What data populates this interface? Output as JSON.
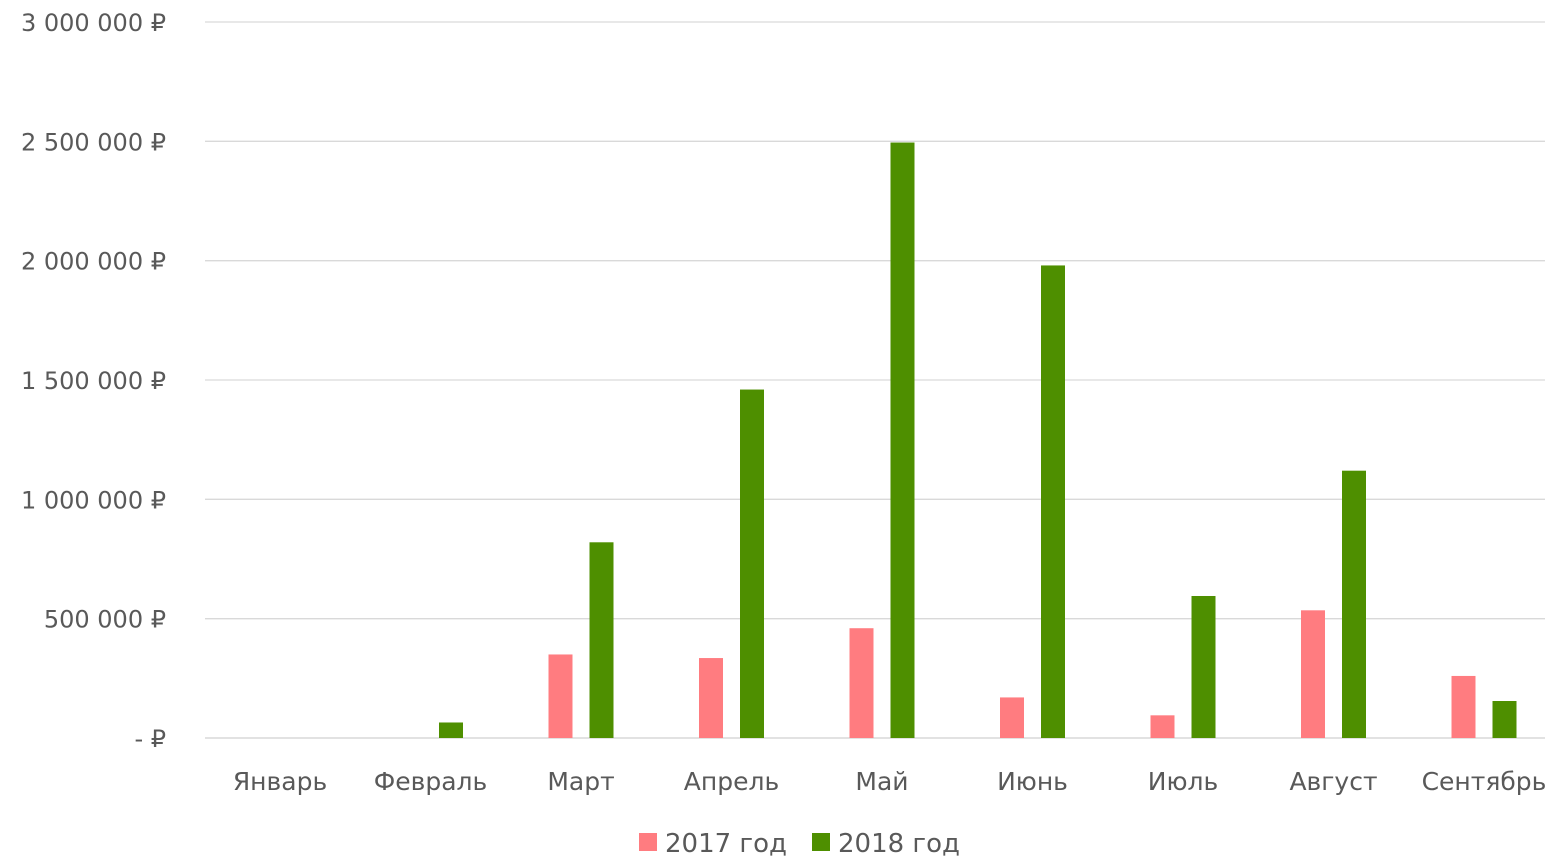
{
  "chart_data": {
    "type": "bar",
    "title": "",
    "xlabel": "",
    "ylabel": "",
    "categories": [
      "Январь",
      "Февраль",
      "Март",
      "Апрель",
      "Май",
      "Июнь",
      "Июль",
      "Август",
      "Сентябрь"
    ],
    "series": [
      {
        "name": "2017 год",
        "color": "#ff7c80",
        "values": [
          0,
          0,
          350000,
          335000,
          460000,
          170000,
          95000,
          535000,
          260000
        ]
      },
      {
        "name": "2018 год",
        "color": "#4e8f00",
        "values": [
          0,
          65000,
          820000,
          1460000,
          2495000,
          1980000,
          595000,
          1120000,
          155000
        ]
      }
    ],
    "ylim": [
      0,
      3000000
    ],
    "yticks": [
      {
        "value": 0,
        "label": "-   ₽"
      },
      {
        "value": 500000,
        "label": "500 000 ₽"
      },
      {
        "value": 1000000,
        "label": "1 000 000 ₽"
      },
      {
        "value": 1500000,
        "label": "1 500 000 ₽"
      },
      {
        "value": 2000000,
        "label": "2 000 000 ₽"
      },
      {
        "value": 2500000,
        "label": "2 500 000 ₽"
      },
      {
        "value": 3000000,
        "label": "3 000 000 ₽"
      }
    ],
    "grid": true,
    "legend_position": "bottom"
  }
}
